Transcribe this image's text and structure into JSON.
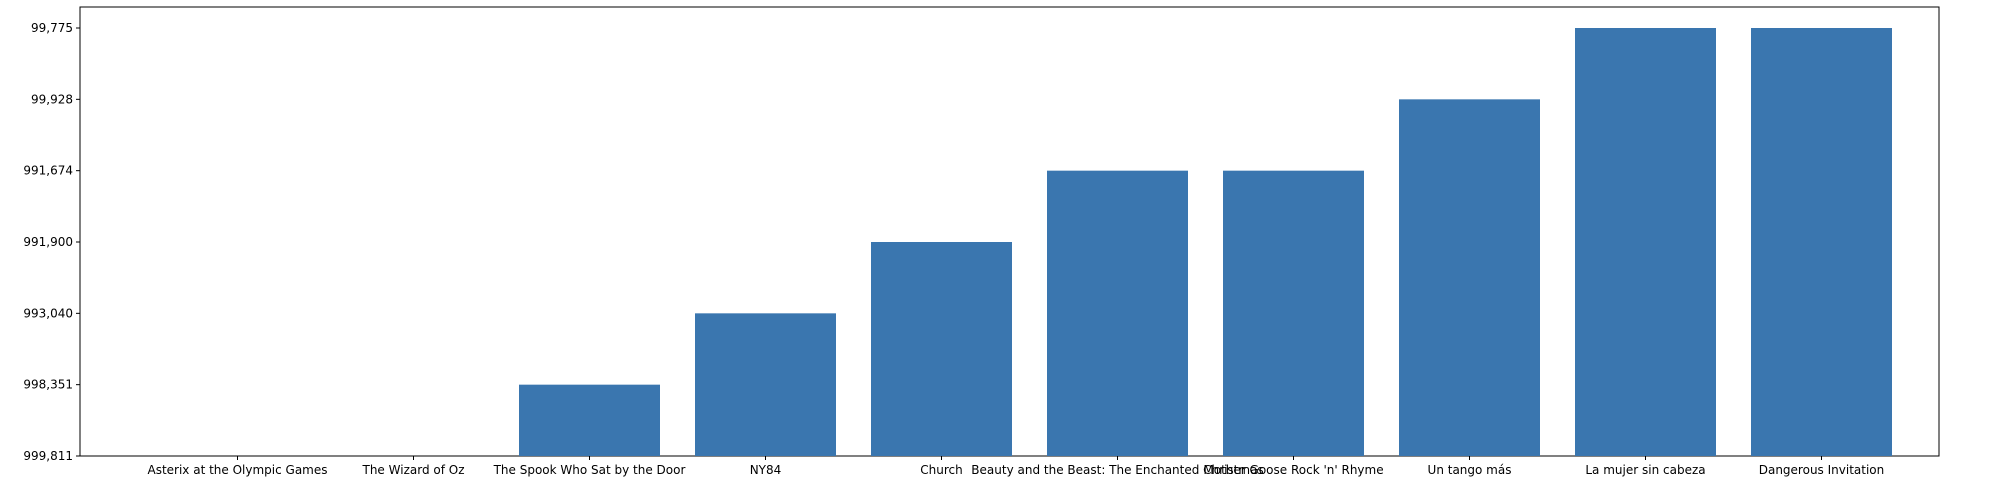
{
  "chart_data": {
    "type": "bar",
    "title": "",
    "xlabel": "",
    "ylabel": "",
    "categories": [
      "Asterix at the Olympic Games",
      "The Wizard of Oz",
      "The Spook Who Sat by the Door",
      "NY84",
      "Church",
      "Beauty and the Beast: The Enchanted Christmas",
      "Mother Goose Rock 'n' Rhyme",
      "Un tango más",
      "La mujer sin cabeza",
      "Dangerous Invitation"
    ],
    "y_tick_labels": [
      "999,811",
      "998,351",
      "993,040",
      "991,900",
      "991,674",
      "99,928",
      "99,775"
    ],
    "values": [
      0,
      0,
      1,
      2,
      3,
      4,
      4,
      5,
      6,
      6
    ],
    "ylim": [
      0,
      6
    ],
    "grid": false,
    "bar_color": "#3a76af"
  }
}
